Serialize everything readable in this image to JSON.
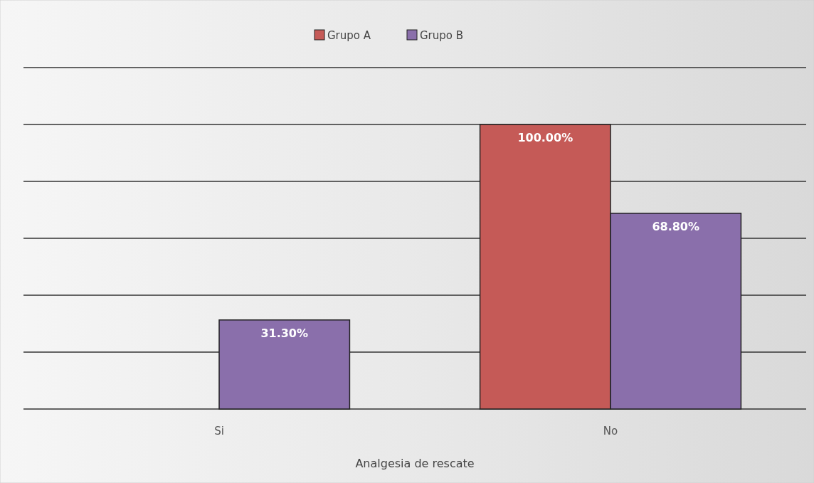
{
  "chart_data": {
    "type": "bar",
    "xlabel": "Analgesia de rescate",
    "categories": [
      "Si",
      "No"
    ],
    "series": [
      {
        "name": "Grupo A",
        "color": "#c55a57",
        "values": [
          0,
          100
        ],
        "value_labels": [
          null,
          "100.00%"
        ]
      },
      {
        "name": "Grupo B",
        "color": "#8a6fab",
        "values": [
          31.3,
          68.8
        ],
        "value_labels": [
          "31.30%",
          "68.80%"
        ]
      }
    ],
    "ylim": [
      0,
      120
    ],
    "yticks": [
      {
        "value": 0,
        "label": null
      },
      {
        "value": 20,
        "label": null
      },
      {
        "value": 40,
        "label": null
      },
      {
        "value": 60,
        "label": null
      },
      {
        "value": 80,
        "label": null
      },
      {
        "value": 100,
        "label": null
      },
      {
        "value": 120,
        "label": null
      }
    ],
    "tick_labels": "x",
    "grid": "y",
    "legend": "top"
  }
}
